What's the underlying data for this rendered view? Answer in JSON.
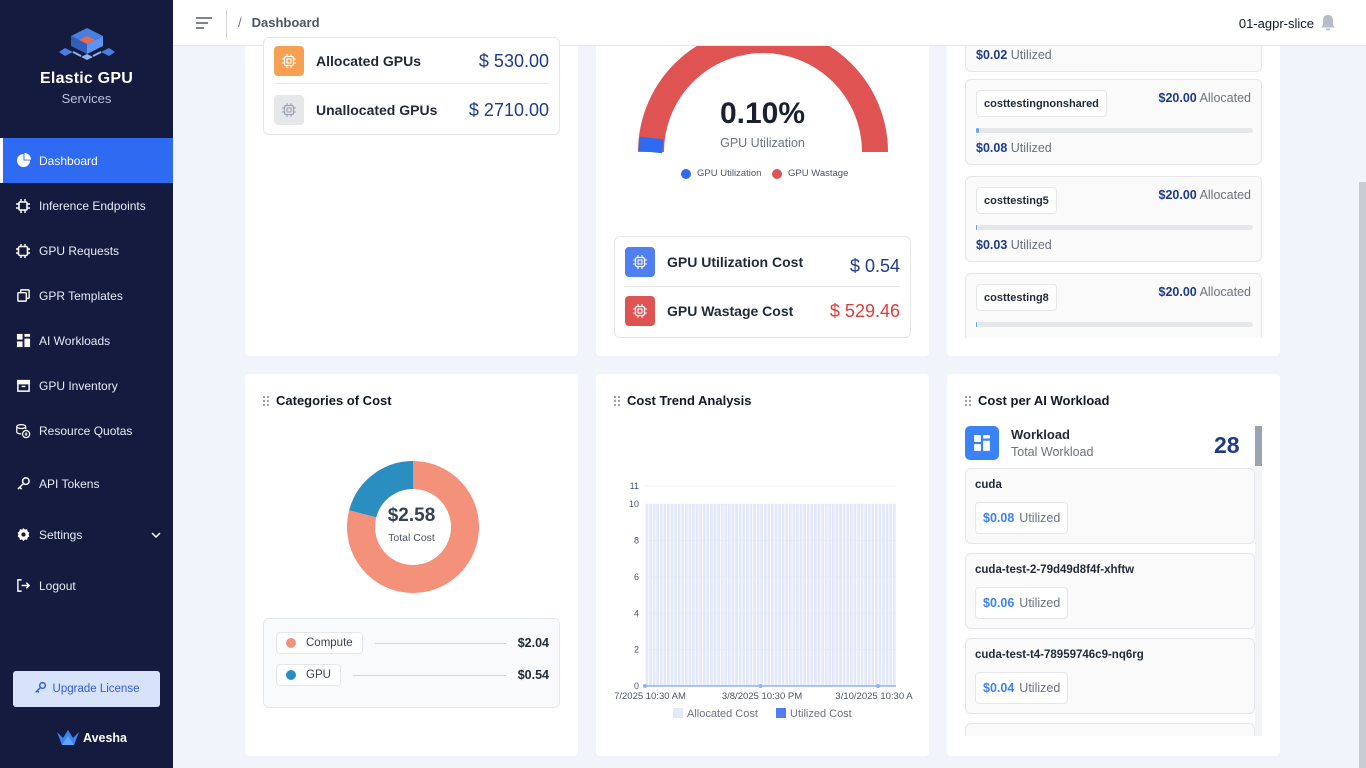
{
  "sidebar": {
    "brand_title": "Elastic GPU",
    "brand_sub": "Services",
    "items": [
      {
        "label": "Dashboard"
      },
      {
        "label": "Inference Endpoints"
      },
      {
        "label": "GPU Requests"
      },
      {
        "label": "GPR Templates"
      },
      {
        "label": "AI Workloads"
      },
      {
        "label": "GPU Inventory"
      },
      {
        "label": "Resource Quotas"
      },
      {
        "label": "API Tokens"
      },
      {
        "label": "Settings"
      },
      {
        "label": "Logout"
      }
    ],
    "upgrade_label": "Upgrade License",
    "footer_brand": "Avesha"
  },
  "topbar": {
    "breadcrumb_sep": "/",
    "breadcrumb": "Dashboard",
    "slice": "01-agpr-slice"
  },
  "gpus": {
    "allocated_label": "Allocated GPUs",
    "allocated_value": "$ 530.00",
    "unallocated_label": "Unallocated GPUs",
    "unallocated_value": "$ 2710.00"
  },
  "utilization": {
    "percent": "0.10%",
    "label": "GPU Utilization",
    "legend": [
      "GPU Utilization",
      "GPU Wastage"
    ],
    "util_cost_label": "GPU Utilization Cost",
    "util_cost_value": "$ 0.54",
    "waste_cost_label": "GPU Wastage Cost",
    "waste_cost_value": "$ 529.46",
    "fraction": 0.001
  },
  "slices": {
    "top_partial_util": "$0.02",
    "util_word": "Utilized",
    "alloc_word": "Allocated",
    "items": [
      {
        "name": "costtestingnonshared",
        "allocated": "$20.00",
        "utilized": "$0.08"
      },
      {
        "name": "costtesting5",
        "allocated": "$20.00",
        "utilized": "$0.03"
      },
      {
        "name": "costtesting8",
        "allocated": "$20.00",
        "utilized": ""
      }
    ]
  },
  "categories": {
    "title": "Categories of Cost",
    "total": "$2.58",
    "total_label": "Total Cost",
    "items": [
      {
        "label": "Compute",
        "value": "$2.04",
        "color": "#f4917b"
      },
      {
        "label": "GPU",
        "value": "$0.54",
        "color": "#2a8fc0"
      }
    ]
  },
  "trend": {
    "title": "Cost Trend Analysis"
  },
  "workloads": {
    "title": "Cost per AI Workload",
    "head_label": "Workload",
    "head_sub": "Total Workload",
    "count": "28",
    "util_word": "Utilized",
    "items": [
      {
        "name": "cuda",
        "utilized": "0.08"
      },
      {
        "name": "cuda-test-2-79d49d8f4f-xhftw",
        "utilized": "0.06"
      },
      {
        "name": "cuda-test-t4-78959746c9-nq6rg",
        "utilized": "0.04"
      }
    ]
  },
  "chart_data": {
    "type": "bar",
    "title": "Cost Trend Analysis",
    "x_ticks": [
      "7/2025 10:30 AM",
      "3/8/2025 10:30 PM",
      "3/10/2025 10:30 A"
    ],
    "y_ticks": [
      0,
      2,
      4,
      6,
      8,
      10,
      11
    ],
    "ylim": [
      0,
      11
    ],
    "series": [
      {
        "name": "Allocated Cost",
        "color": "#e3e9fb",
        "value_each_bar": 10
      },
      {
        "name": "Utilized Cost",
        "color": "#4f7ff0",
        "value_each_bar": 0
      }
    ],
    "bar_count": 70,
    "legend_position": "bottom"
  }
}
